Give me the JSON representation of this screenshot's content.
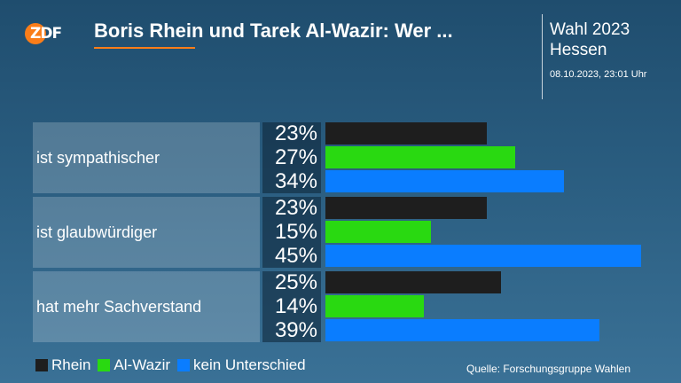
{
  "header": {
    "logo_text": "ZDF",
    "title": "Boris Rhein und Tarek Al-Wazir: Wer ...",
    "election_line1": "Wahl 2023",
    "election_line2": "Hessen",
    "timestamp": "08.10.2023, 23:01 Uhr"
  },
  "colors": {
    "rhein": "#1e1e1e",
    "al_wazir": "#29d911",
    "kein_unterschied": "#0a7dff",
    "accent": "#fa7d19"
  },
  "chart_data": {
    "type": "bar",
    "orientation": "horizontal",
    "categories": [
      "ist sympathischer",
      "ist glaubwürdiger",
      "hat mehr Sachverstand"
    ],
    "series": [
      {
        "name": "Rhein",
        "values": [
          23,
          23,
          25
        ],
        "labels": [
          "23%",
          "23%",
          "25%"
        ]
      },
      {
        "name": "Al-Wazir",
        "values": [
          27,
          15,
          14
        ],
        "labels": [
          "27%",
          "15%",
          "14%"
        ]
      },
      {
        "name": "kein Unterschied",
        "values": [
          34,
          45,
          39
        ],
        "labels": [
          "34%",
          "45%",
          "39%"
        ]
      }
    ],
    "unit": "%",
    "xlim": [
      0,
      45
    ],
    "legend_position": "bottom-left",
    "grid": false
  },
  "source": "Quelle: Forschungsgruppe Wahlen"
}
